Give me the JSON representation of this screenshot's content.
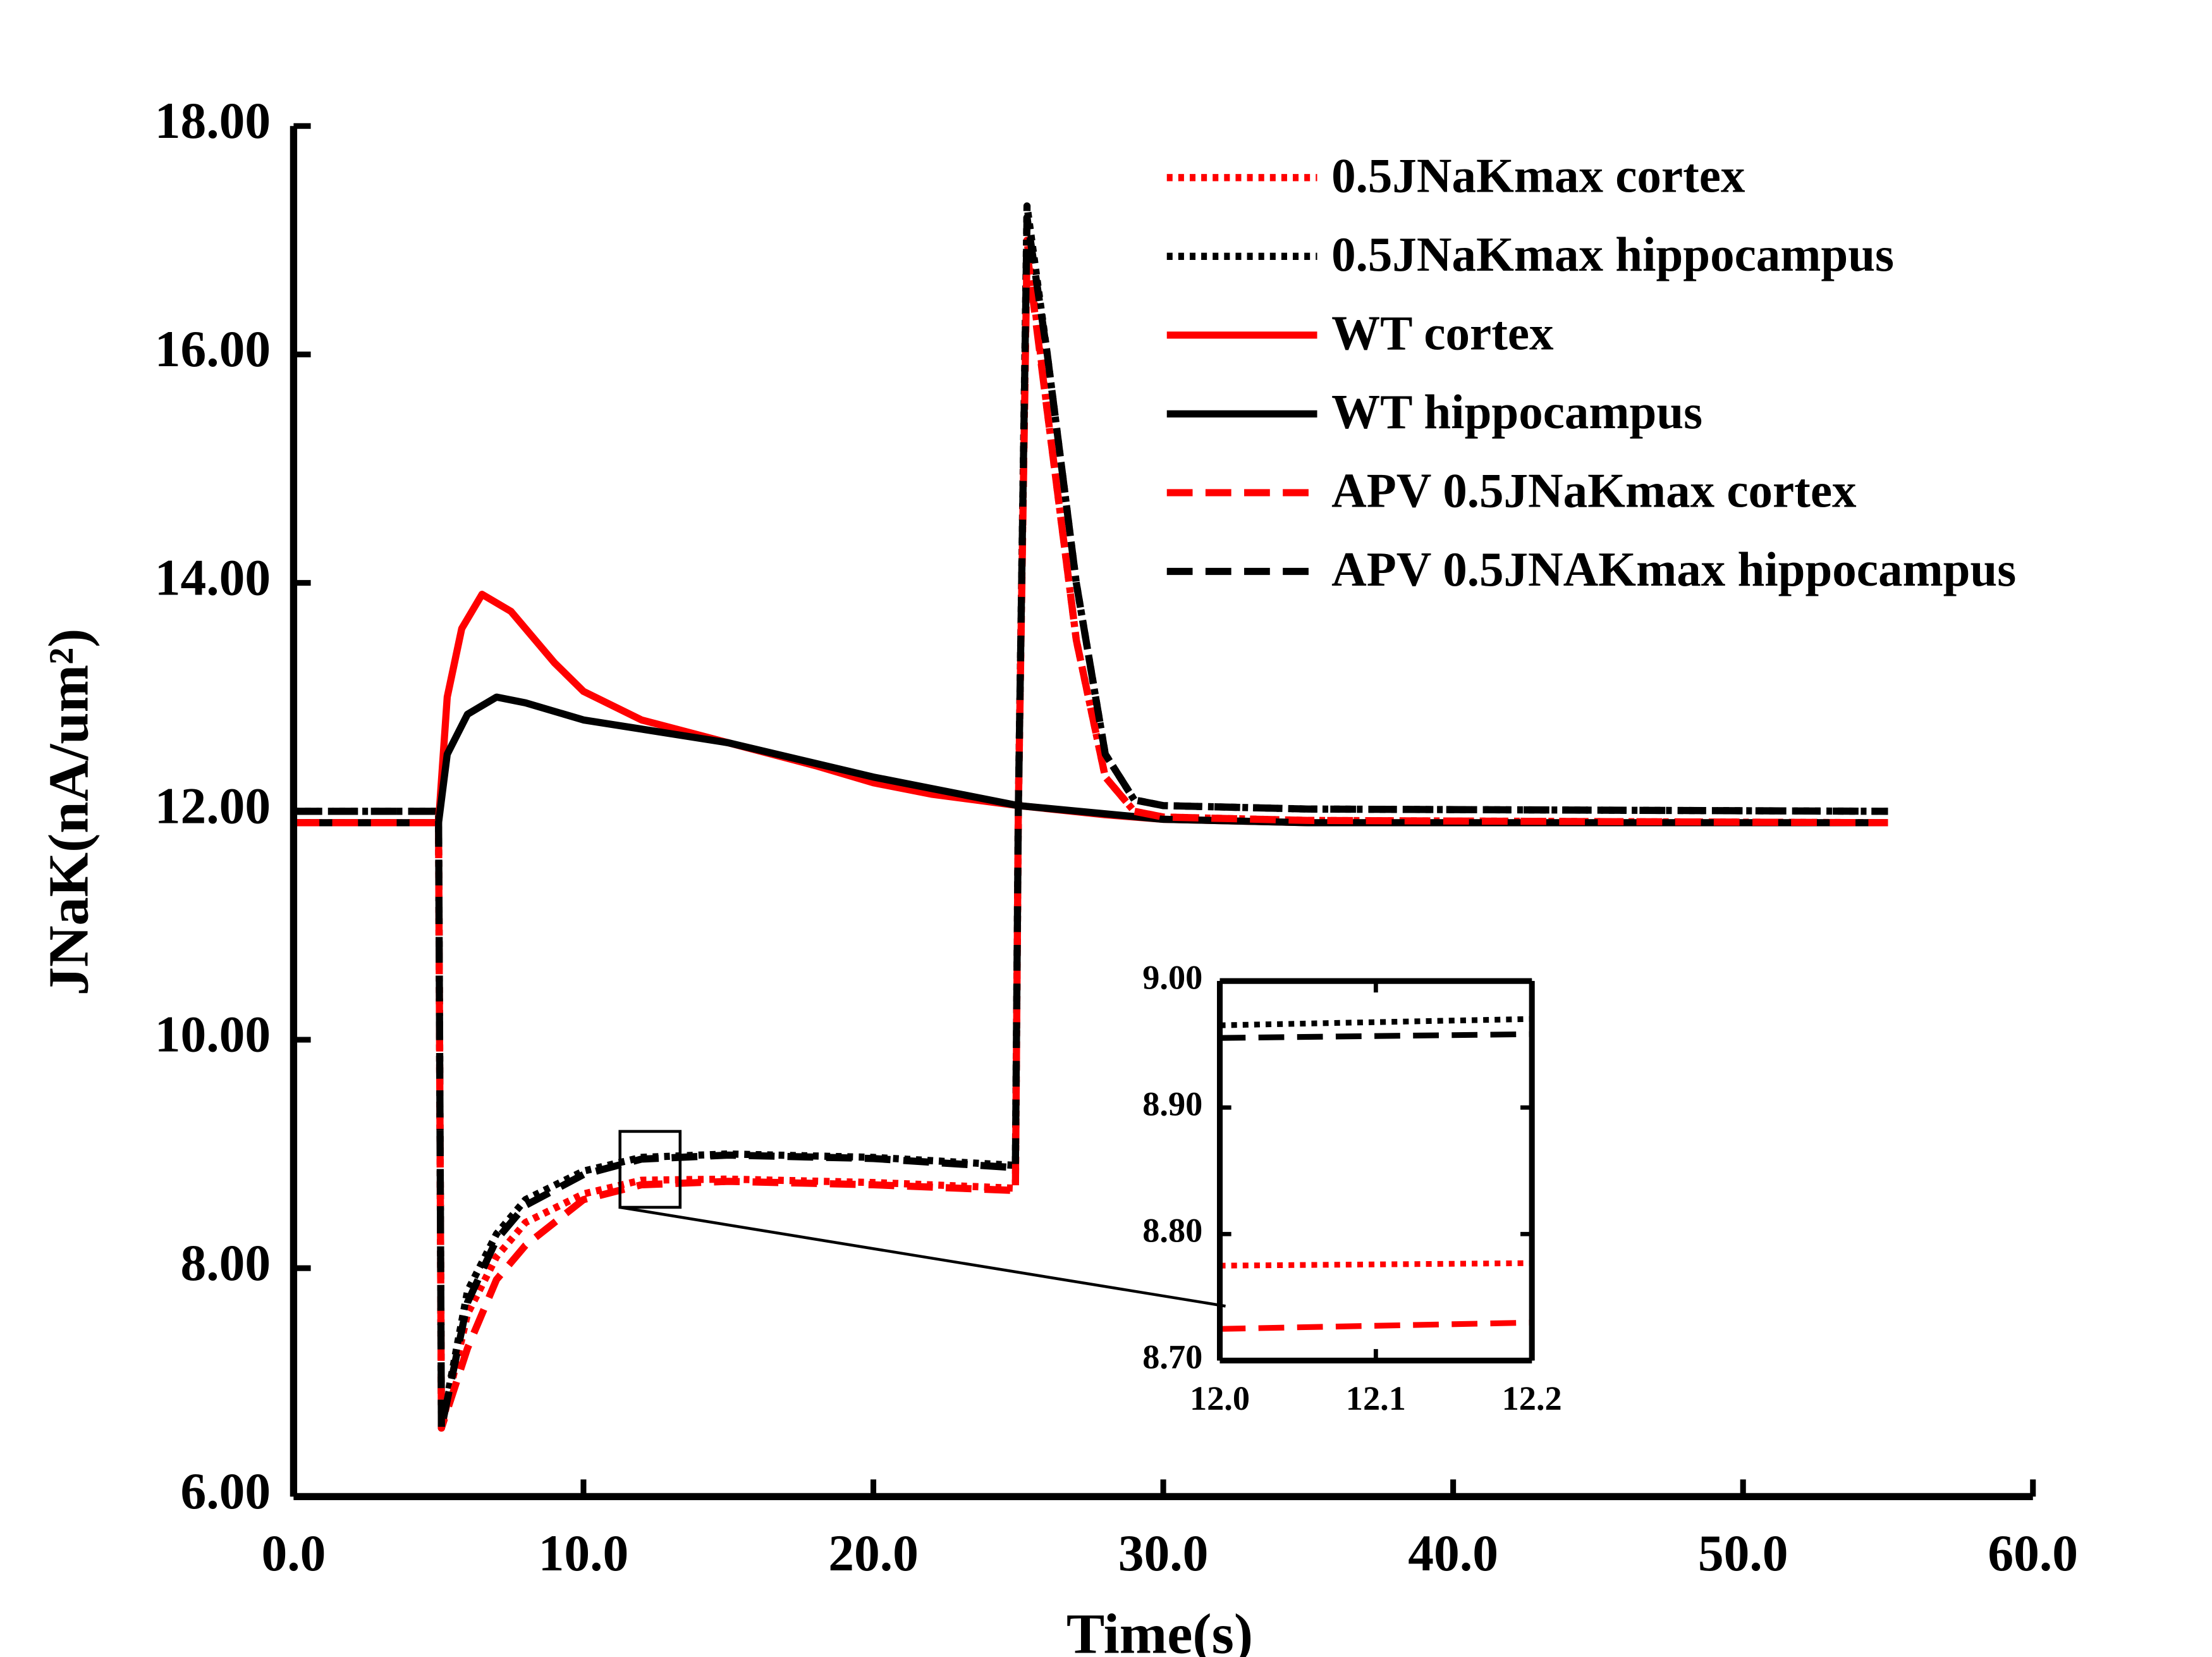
{
  "chart_data": [
    {
      "type": "line",
      "x_label": "Time(s)",
      "y_label": "JNaK(nA/um²)",
      "xlim": [
        0,
        60
      ],
      "ylim": [
        6,
        18
      ],
      "xticks": [
        {
          "value": 0,
          "label": "0.0"
        },
        {
          "value": 10,
          "label": "10.0"
        },
        {
          "value": 20,
          "label": "20.0"
        },
        {
          "value": 30,
          "label": "30.0"
        },
        {
          "value": 40,
          "label": "40.0"
        },
        {
          "value": 50,
          "label": "50.0"
        },
        {
          "value": 60,
          "label": "60.0"
        }
      ],
      "yticks": [
        {
          "value": 6,
          "label": "6.00"
        },
        {
          "value": 8,
          "label": "8.00"
        },
        {
          "value": 10,
          "label": "10.00"
        },
        {
          "value": 12,
          "label": "12.00"
        },
        {
          "value": 14,
          "label": "14.00"
        },
        {
          "value": 16,
          "label": "16.00"
        },
        {
          "value": 18,
          "label": "18.00"
        }
      ],
      "legend": "upper right",
      "series": [
        {
          "name": "0.5JNaKmax cortex",
          "color": "#ff0000",
          "line_style": "dotted",
          "x": [
            0,
            5,
            5.1,
            6,
            7,
            8,
            10,
            12,
            15,
            20,
            24.9,
            25,
            25.3,
            26,
            27,
            28,
            29,
            30,
            35,
            55
          ],
          "values": [
            11.9,
            11.9,
            6.6,
            7.6,
            8.1,
            8.4,
            8.65,
            8.77,
            8.78,
            8.75,
            8.7,
            12,
            17.0,
            15.5,
            13.5,
            12.3,
            12.0,
            11.95,
            11.92,
            11.9
          ]
        },
        {
          "name": "0.5JNaKmax hippocampus",
          "color": "#000000",
          "line_style": "dotted",
          "x": [
            0,
            5,
            5.1,
            6,
            7,
            8,
            10,
            12,
            15,
            20,
            24.9,
            25,
            25.3,
            26,
            27,
            28,
            29,
            30,
            35,
            55
          ],
          "values": [
            12.0,
            12.0,
            6.6,
            7.8,
            8.3,
            8.6,
            8.85,
            8.97,
            9.0,
            8.97,
            8.9,
            12,
            17.3,
            16.0,
            14.0,
            12.5,
            12.1,
            12.05,
            12.02,
            12.0
          ]
        },
        {
          "name": "WT cortex",
          "color": "#ff0000",
          "line_style": "solid",
          "x": [
            0,
            5,
            5.3,
            5.8,
            6.5,
            7.5,
            9,
            10,
            12,
            15,
            18,
            20,
            22,
            25,
            28,
            30,
            35,
            55
          ],
          "values": [
            11.9,
            11.9,
            13.0,
            13.6,
            13.9,
            13.75,
            13.3,
            13.05,
            12.8,
            12.6,
            12.4,
            12.25,
            12.15,
            12.05,
            11.97,
            11.93,
            11.9,
            11.9
          ]
        },
        {
          "name": "WT hippocampus",
          "color": "#000000",
          "line_style": "solid",
          "x": [
            0,
            5,
            5.3,
            6,
            7,
            8,
            10,
            15,
            20,
            25,
            30,
            35,
            55
          ],
          "values": [
            11.9,
            11.9,
            12.5,
            12.85,
            13.0,
            12.95,
            12.8,
            12.6,
            12.3,
            12.05,
            11.93,
            11.9,
            11.9
          ]
        },
        {
          "name": "APV 0.5JNaKmax cortex",
          "color": "#ff0000",
          "line_style": "dashed",
          "x": [
            0,
            5,
            5.1,
            6,
            7,
            8,
            10,
            12,
            15,
            20,
            24.9,
            25,
            25.3,
            26,
            27,
            28,
            29,
            30,
            35,
            55
          ],
          "values": [
            11.9,
            11.9,
            6.6,
            7.3,
            7.9,
            8.2,
            8.6,
            8.73,
            8.76,
            8.73,
            8.68,
            12,
            16.9,
            15.5,
            13.5,
            12.3,
            12.0,
            11.95,
            11.92,
            11.9
          ]
        },
        {
          "name": "APV 0.5JNAKmax hippocampus",
          "color": "#000000",
          "line_style": "dashed",
          "x": [
            0,
            5,
            5.1,
            6,
            7,
            8,
            10,
            12,
            15,
            20,
            24.9,
            25,
            25.3,
            26,
            27,
            28,
            29,
            30,
            35,
            55
          ],
          "values": [
            12.0,
            12.0,
            6.6,
            7.7,
            8.25,
            8.55,
            8.82,
            8.955,
            8.99,
            8.96,
            8.88,
            12,
            17.2,
            16.0,
            14.0,
            12.5,
            12.1,
            12.05,
            12.02,
            12.0
          ]
        }
      ]
    },
    {
      "type": "line",
      "xlim": [
        12.0,
        12.2
      ],
      "ylim": [
        8.7,
        9.0
      ],
      "xticks": [
        {
          "value": 12.0,
          "label": "12.0"
        },
        12.1,
        12.2
      ],
      "yticks": [
        {
          "value": 8.7,
          "label": "8.70"
        },
        {
          "value": 8.8,
          "label": "8.80"
        },
        {
          "value": 8.9,
          "label": "8.90"
        },
        {
          "value": 9.0,
          "label": "9.00"
        }
      ],
      "series": [
        {
          "color": "#ff0000",
          "line_style": "dotted",
          "x": [
            12.0,
            12.2
          ],
          "values": [
            8.775,
            8.777
          ]
        },
        {
          "color": "#000000",
          "line_style": "dotted",
          "x": [
            12.0,
            12.2
          ],
          "values": [
            8.965,
            8.97
          ]
        },
        {
          "color": "#ff0000",
          "line_style": "dashed",
          "x": [
            12.0,
            12.2
          ],
          "values": [
            8.725,
            8.73
          ]
        },
        {
          "color": "#000000",
          "line_style": "dashed",
          "x": [
            12.0,
            12.2
          ],
          "values": [
            8.955,
            8.958
          ]
        }
      ]
    }
  ]
}
